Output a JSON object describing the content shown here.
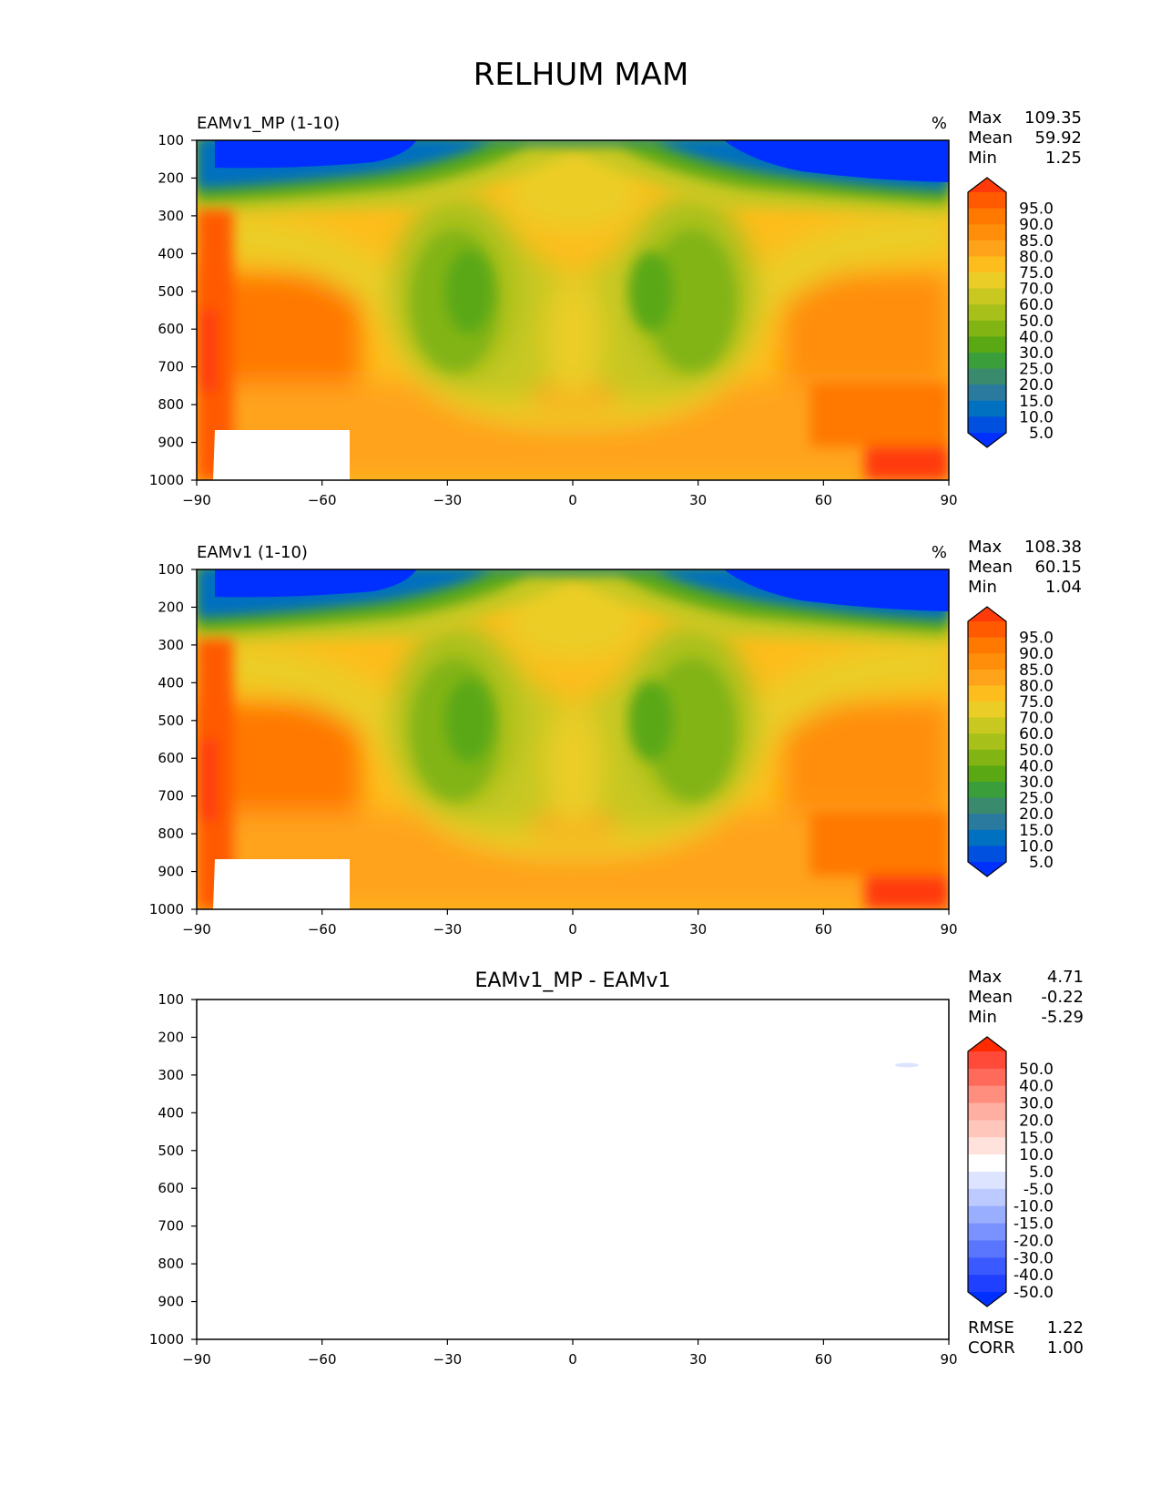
{
  "figure_title": "RELHUM MAM",
  "panels": [
    {
      "title": "EAMv1_MP (1-10)",
      "units": "%",
      "stats": {
        "max_label": "Max",
        "max": "109.35",
        "mean_label": "Mean",
        "mean": "59.92",
        "min_label": "Min",
        "min": "1.25"
      }
    },
    {
      "title": "EAMv1 (1-10)",
      "units": "%",
      "stats": {
        "max_label": "Max",
        "max": "108.38",
        "mean_label": "Mean",
        "mean": "60.15",
        "min_label": "Min",
        "min": "1.04"
      }
    },
    {
      "title": "EAMv1_MP - EAMv1",
      "units": "",
      "stats": {
        "max_label": "Max",
        "max": "4.71",
        "mean_label": "Mean",
        "mean": "-0.22",
        "min_label": "Min",
        "min": "-5.29"
      },
      "extra": {
        "rmse_label": "RMSE",
        "rmse": "1.22",
        "corr_label": "CORR",
        "corr": "1.00"
      }
    }
  ],
  "colorbars": {
    "field": {
      "labels": [
        "95.0",
        "90.0",
        "85.0",
        "80.0",
        "75.0",
        "70.0",
        "60.0",
        "50.0",
        "40.0",
        "30.0",
        "25.0",
        "20.0",
        "15.0",
        "10.0",
        "5.0"
      ],
      "colors_top_to_bottom": [
        "#ff3a0a",
        "#ff5a00",
        "#ff7800",
        "#ff8e0a",
        "#ffa31a",
        "#fdbd1c",
        "#ebcd28",
        "#c8c820",
        "#a8c01a",
        "#82b414",
        "#5aa814",
        "#3a9e3a",
        "#3a8a6e",
        "#2a7aa0",
        "#0070c0",
        "#0050e0",
        "#0030ff"
      ]
    },
    "diff": {
      "labels": [
        "50.0",
        "40.0",
        "30.0",
        "20.0",
        "15.0",
        "10.0",
        "5.0",
        "-5.0",
        "-10.0",
        "-15.0",
        "-20.0",
        "-30.0",
        "-40.0",
        "-50.0"
      ],
      "colors_top_to_bottom": [
        "#ff2a00",
        "#ff4a3a",
        "#ff6a5a",
        "#ff8e7e",
        "#ffaea2",
        "#ffc6bc",
        "#ffe2dc",
        "#ffffff",
        "#dce4ff",
        "#bccaff",
        "#9aaeff",
        "#7a92ff",
        "#5a76ff",
        "#3a5aff",
        "#2040ff",
        "#0030ff"
      ]
    }
  },
  "chart_data": [
    {
      "type": "heatmap",
      "name": "EAMv1_MP (1-10)",
      "xlabel": "",
      "ylabel": "",
      "x_ticks": [
        "−90",
        "−60",
        "−30",
        "0",
        "30",
        "60",
        "90"
      ],
      "y_ticks": [
        "100",
        "200",
        "300",
        "400",
        "500",
        "600",
        "700",
        "800",
        "900",
        "1000"
      ],
      "xlim": [
        -90,
        90
      ],
      "ylim": [
        1000,
        100
      ],
      "values_summary": {
        "max": 109.35,
        "mean": 59.92,
        "min": 1.25
      }
    },
    {
      "type": "heatmap",
      "name": "EAMv1 (1-10)",
      "xlabel": "",
      "ylabel": "",
      "x_ticks": [
        "−90",
        "−60",
        "−30",
        "0",
        "30",
        "60",
        "90"
      ],
      "y_ticks": [
        "100",
        "200",
        "300",
        "400",
        "500",
        "600",
        "700",
        "800",
        "900",
        "1000"
      ],
      "xlim": [
        -90,
        90
      ],
      "ylim": [
        1000,
        100
      ],
      "values_summary": {
        "max": 108.38,
        "mean": 60.15,
        "min": 1.04
      }
    },
    {
      "type": "heatmap",
      "name": "EAMv1_MP - EAMv1",
      "xlabel": "",
      "ylabel": "",
      "x_ticks": [
        "−90",
        "−60",
        "−30",
        "0",
        "30",
        "60",
        "90"
      ],
      "y_ticks": [
        "100",
        "200",
        "300",
        "400",
        "500",
        "600",
        "700",
        "800",
        "900",
        "1000"
      ],
      "xlim": [
        -90,
        90
      ],
      "ylim": [
        1000,
        100
      ],
      "values_summary": {
        "max": 4.71,
        "mean": -0.22,
        "min": -5.29,
        "rmse": 1.22,
        "corr": 1.0
      }
    }
  ]
}
